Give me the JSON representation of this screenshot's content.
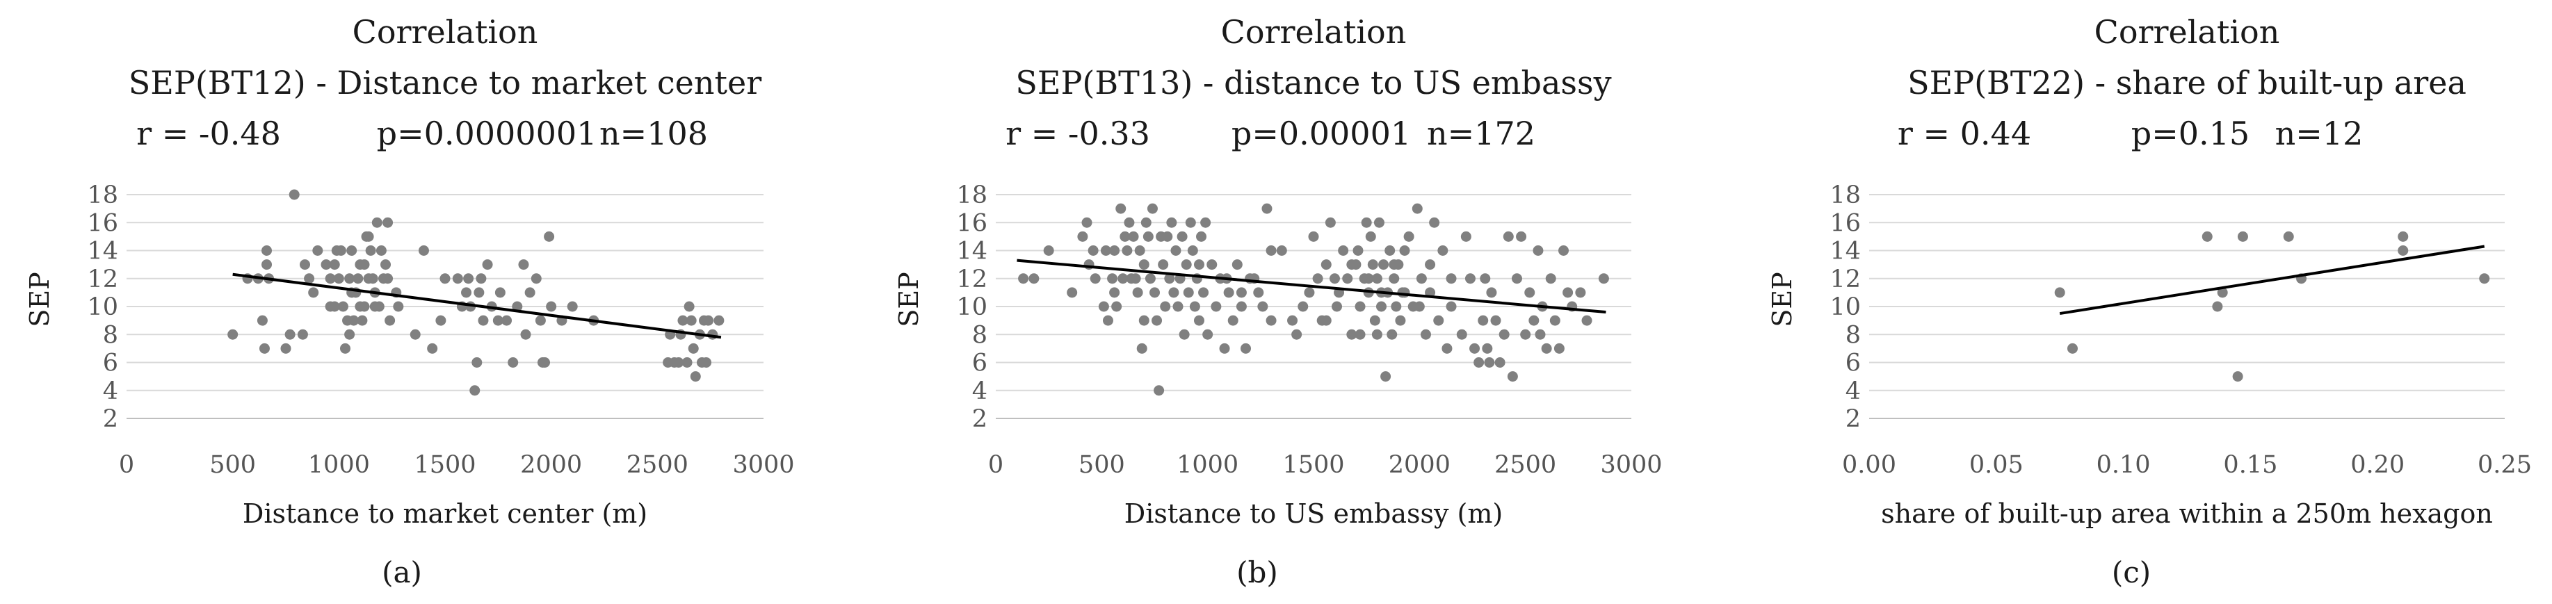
{
  "chart_data": [
    {
      "type": "scatter",
      "label": "(a)",
      "title": "Correlation",
      "subtitle": "SEP(BT12) - Distance to market center",
      "stats": {
        "r": "r = -0.48",
        "p": "p=0.0000001",
        "n": "n=108"
      },
      "xlabel": "Distance to market center (m)",
      "ylabel": "SEP",
      "xlim": [
        0,
        3000
      ],
      "ylim": [
        2,
        18
      ],
      "xticks": [
        0,
        500,
        1000,
        1500,
        2000,
        2500,
        3000
      ],
      "xtick_labels": [
        "0",
        "500",
        "1000",
        "1500",
        "2000",
        "2500",
        "3000"
      ],
      "yticks": [
        2,
        4,
        6,
        8,
        10,
        12,
        14,
        16,
        18
      ],
      "trendline": [
        [
          500,
          12.3
        ],
        [
          2800,
          7.8
        ]
      ],
      "points": [
        [
          500,
          8
        ],
        [
          570,
          12
        ],
        [
          620,
          12
        ],
        [
          640,
          9
        ],
        [
          650,
          7
        ],
        [
          660,
          14
        ],
        [
          660,
          13
        ],
        [
          670,
          12
        ],
        [
          750,
          7
        ],
        [
          770,
          8
        ],
        [
          790,
          18
        ],
        [
          830,
          8
        ],
        [
          840,
          13
        ],
        [
          860,
          12
        ],
        [
          880,
          11
        ],
        [
          900,
          14
        ],
        [
          940,
          13
        ],
        [
          960,
          12
        ],
        [
          980,
          10
        ],
        [
          990,
          14
        ],
        [
          1000,
          12
        ],
        [
          1010,
          14
        ],
        [
          1020,
          10
        ],
        [
          1030,
          7
        ],
        [
          1040,
          9
        ],
        [
          1050,
          12
        ],
        [
          1050,
          8
        ],
        [
          1060,
          14
        ],
        [
          1080,
          11
        ],
        [
          1090,
          12
        ],
        [
          1100,
          10
        ],
        [
          1110,
          9
        ],
        [
          1120,
          13
        ],
        [
          1130,
          15
        ],
        [
          1140,
          15
        ],
        [
          1150,
          14
        ],
        [
          1160,
          12
        ],
        [
          1170,
          11
        ],
        [
          1180,
          16
        ],
        [
          1190,
          10
        ],
        [
          1200,
          14
        ],
        [
          1210,
          12
        ],
        [
          1220,
          13
        ],
        [
          1230,
          16
        ],
        [
          1240,
          9
        ],
        [
          1280,
          10
        ],
        [
          1360,
          8
        ],
        [
          1400,
          14
        ],
        [
          1440,
          7
        ],
        [
          1480,
          9
        ],
        [
          1500,
          12
        ],
        [
          1560,
          12
        ],
        [
          1580,
          10
        ],
        [
          1600,
          11
        ],
        [
          1610,
          12
        ],
        [
          1620,
          10
        ],
        [
          1640,
          4
        ],
        [
          1650,
          6
        ],
        [
          1660,
          11
        ],
        [
          1670,
          12
        ],
        [
          1680,
          9
        ],
        [
          1700,
          13
        ],
        [
          1720,
          10
        ],
        [
          1750,
          9
        ],
        [
          1760,
          11
        ],
        [
          1790,
          9
        ],
        [
          1820,
          6
        ],
        [
          1840,
          10
        ],
        [
          1870,
          13
        ],
        [
          1880,
          8
        ],
        [
          1900,
          11
        ],
        [
          1930,
          12
        ],
        [
          1950,
          9
        ],
        [
          1960,
          6
        ],
        [
          1970,
          6
        ],
        [
          1990,
          15
        ],
        [
          2000,
          10
        ],
        [
          2050,
          9
        ],
        [
          2100,
          10
        ],
        [
          2200,
          9
        ],
        [
          2550,
          6
        ],
        [
          2560,
          8
        ],
        [
          2580,
          6
        ],
        [
          2600,
          6
        ],
        [
          2610,
          8
        ],
        [
          2620,
          9
        ],
        [
          2640,
          6
        ],
        [
          2650,
          10
        ],
        [
          2660,
          9
        ],
        [
          2670,
          7
        ],
        [
          2680,
          5
        ],
        [
          2700,
          8
        ],
        [
          2710,
          6
        ],
        [
          2720,
          9
        ],
        [
          2730,
          6
        ],
        [
          2740,
          9
        ],
        [
          2760,
          8
        ],
        [
          2790,
          9
        ],
        [
          1170,
          10
        ],
        [
          1230,
          12
        ],
        [
          1270,
          11
        ],
        [
          980,
          13
        ],
        [
          960,
          10
        ],
        [
          1060,
          11
        ],
        [
          1070,
          9
        ],
        [
          1100,
          13
        ],
        [
          1120,
          10
        ],
        [
          1140,
          12
        ]
      ]
    },
    {
      "type": "scatter",
      "label": "(b)",
      "title": "Correlation",
      "subtitle": "SEP(BT13) - distance to US embassy",
      "stats": {
        "r": "r = -0.33",
        "p": "p=0.00001",
        "n": "n=172"
      },
      "xlabel": "Distance to US embassy (m)",
      "ylabel": "SEP",
      "xlim": [
        0,
        3000
      ],
      "ylim": [
        2,
        18
      ],
      "xticks": [
        0,
        500,
        1000,
        1500,
        2000,
        2500,
        3000
      ],
      "xtick_labels": [
        "0",
        "500",
        "1000",
        "1500",
        "2000",
        "2500",
        "3000"
      ],
      "yticks": [
        2,
        4,
        6,
        8,
        10,
        12,
        14,
        16,
        18
      ],
      "trendline": [
        [
          100,
          13.3
        ],
        [
          2880,
          9.6
        ]
      ],
      "points": [
        [
          130,
          12
        ],
        [
          180,
          12
        ],
        [
          250,
          14
        ],
        [
          360,
          11
        ],
        [
          410,
          15
        ],
        [
          430,
          16
        ],
        [
          440,
          13
        ],
        [
          460,
          14
        ],
        [
          470,
          12
        ],
        [
          510,
          10
        ],
        [
          520,
          14
        ],
        [
          530,
          9
        ],
        [
          550,
          12
        ],
        [
          560,
          14
        ],
        [
          570,
          10
        ],
        [
          590,
          17
        ],
        [
          600,
          12
        ],
        [
          610,
          15
        ],
        [
          620,
          14
        ],
        [
          630,
          16
        ],
        [
          640,
          12
        ],
        [
          650,
          15
        ],
        [
          660,
          12
        ],
        [
          670,
          11
        ],
        [
          680,
          14
        ],
        [
          690,
          7
        ],
        [
          700,
          13
        ],
        [
          710,
          16
        ],
        [
          720,
          15
        ],
        [
          730,
          12
        ],
        [
          740,
          17
        ],
        [
          750,
          11
        ],
        [
          760,
          9
        ],
        [
          770,
          4
        ],
        [
          780,
          15
        ],
        [
          790,
          13
        ],
        [
          800,
          10
        ],
        [
          810,
          15
        ],
        [
          820,
          12
        ],
        [
          830,
          16
        ],
        [
          840,
          11
        ],
        [
          850,
          14
        ],
        [
          860,
          10
        ],
        [
          870,
          12
        ],
        [
          880,
          15
        ],
        [
          890,
          8
        ],
        [
          900,
          13
        ],
        [
          910,
          11
        ],
        [
          920,
          16
        ],
        [
          930,
          14
        ],
        [
          940,
          10
        ],
        [
          950,
          12
        ],
        [
          960,
          9
        ],
        [
          970,
          15
        ],
        [
          980,
          11
        ],
        [
          990,
          16
        ],
        [
          1000,
          8
        ],
        [
          1020,
          13
        ],
        [
          1040,
          10
        ],
        [
          1060,
          12
        ],
        [
          1080,
          7
        ],
        [
          1100,
          11
        ],
        [
          1120,
          9
        ],
        [
          1140,
          13
        ],
        [
          1160,
          11
        ],
        [
          1180,
          7
        ],
        [
          1200,
          12
        ],
        [
          1220,
          12
        ],
        [
          1240,
          11
        ],
        [
          1260,
          10
        ],
        [
          1280,
          17
        ],
        [
          1300,
          14
        ],
        [
          1400,
          9
        ],
        [
          1420,
          8
        ],
        [
          1480,
          11
        ],
        [
          1500,
          15
        ],
        [
          1520,
          12
        ],
        [
          1540,
          9
        ],
        [
          1560,
          13
        ],
        [
          1580,
          16
        ],
        [
          1600,
          12
        ],
        [
          1610,
          10
        ],
        [
          1620,
          11
        ],
        [
          1640,
          14
        ],
        [
          1660,
          12
        ],
        [
          1680,
          8
        ],
        [
          1700,
          13
        ],
        [
          1710,
          14
        ],
        [
          1720,
          10
        ],
        [
          1740,
          12
        ],
        [
          1750,
          16
        ],
        [
          1760,
          11
        ],
        [
          1770,
          15
        ],
        [
          1780,
          13
        ],
        [
          1790,
          9
        ],
        [
          1800,
          12
        ],
        [
          1810,
          16
        ],
        [
          1820,
          10
        ],
        [
          1830,
          13
        ],
        [
          1840,
          5
        ],
        [
          1850,
          11
        ],
        [
          1860,
          14
        ],
        [
          1870,
          8
        ],
        [
          1880,
          12
        ],
        [
          1890,
          10
        ],
        [
          1900,
          13
        ],
        [
          1910,
          9
        ],
        [
          1920,
          11
        ],
        [
          1930,
          14
        ],
        [
          1950,
          15
        ],
        [
          1970,
          10
        ],
        [
          1990,
          17
        ],
        [
          2010,
          12
        ],
        [
          2030,
          8
        ],
        [
          2050,
          11
        ],
        [
          2070,
          16
        ],
        [
          2090,
          9
        ],
        [
          2110,
          14
        ],
        [
          2130,
          7
        ],
        [
          2150,
          10
        ],
        [
          2200,
          8
        ],
        [
          2220,
          15
        ],
        [
          2240,
          12
        ],
        [
          2260,
          7
        ],
        [
          2280,
          6
        ],
        [
          2300,
          9
        ],
        [
          2310,
          12
        ],
        [
          2320,
          7
        ],
        [
          2330,
          6
        ],
        [
          2340,
          11
        ],
        [
          2360,
          9
        ],
        [
          2380,
          6
        ],
        [
          2400,
          8
        ],
        [
          2420,
          15
        ],
        [
          2440,
          5
        ],
        [
          2460,
          12
        ],
        [
          2480,
          15
        ],
        [
          2500,
          8
        ],
        [
          2520,
          11
        ],
        [
          2540,
          9
        ],
        [
          2560,
          14
        ],
        [
          2570,
          8
        ],
        [
          2580,
          10
        ],
        [
          2600,
          7
        ],
        [
          2620,
          12
        ],
        [
          2640,
          9
        ],
        [
          2660,
          7
        ],
        [
          2680,
          14
        ],
        [
          2700,
          11
        ],
        [
          2720,
          10
        ],
        [
          2760,
          11
        ],
        [
          2790,
          9
        ],
        [
          2870,
          12
        ],
        [
          1800,
          8
        ],
        [
          1820,
          11
        ],
        [
          1300,
          9
        ],
        [
          1350,
          14
        ],
        [
          1450,
          10
        ],
        [
          1560,
          9
        ],
        [
          1680,
          13
        ],
        [
          1720,
          8
        ],
        [
          1760,
          12
        ],
        [
          560,
          11
        ],
        [
          700,
          9
        ],
        [
          960,
          13
        ],
        [
          1090,
          12
        ],
        [
          1160,
          10
        ],
        [
          1880,
          13
        ],
        [
          1930,
          11
        ],
        [
          2000,
          10
        ],
        [
          2050,
          13
        ],
        [
          2150,
          12
        ]
      ]
    },
    {
      "type": "scatter",
      "label": "(c)",
      "title": "Correlation",
      "subtitle": "SEP(BT22) - share of built-up area",
      "stats": {
        "r": "r = 0.44",
        "p": "p=0.15",
        "n": "n=12"
      },
      "xlabel": "share of built-up area within a 250m hexagon",
      "ylabel": "SEP",
      "xlim": [
        0,
        0.25
      ],
      "ylim": [
        2,
        18
      ],
      "xticks": [
        0,
        0.05,
        0.1,
        0.15,
        0.2,
        0.25
      ],
      "xtick_labels": [
        "0.00",
        "0.05",
        "0.10",
        "0.15",
        "0.20",
        "0.25"
      ],
      "yticks": [
        2,
        4,
        6,
        8,
        10,
        12,
        14,
        16,
        18
      ],
      "trendline": [
        [
          0.075,
          9.5
        ],
        [
          0.242,
          14.3
        ]
      ],
      "points": [
        [
          0.075,
          11
        ],
        [
          0.08,
          7
        ],
        [
          0.133,
          15
        ],
        [
          0.137,
          10
        ],
        [
          0.139,
          11
        ],
        [
          0.145,
          5
        ],
        [
          0.147,
          15
        ],
        [
          0.165,
          15
        ],
        [
          0.17,
          12
        ],
        [
          0.21,
          15
        ],
        [
          0.21,
          14
        ],
        [
          0.242,
          12
        ]
      ]
    }
  ],
  "colors": {
    "marker": "#808080",
    "trend": "#000000",
    "grid": "#d9d9d9"
  }
}
